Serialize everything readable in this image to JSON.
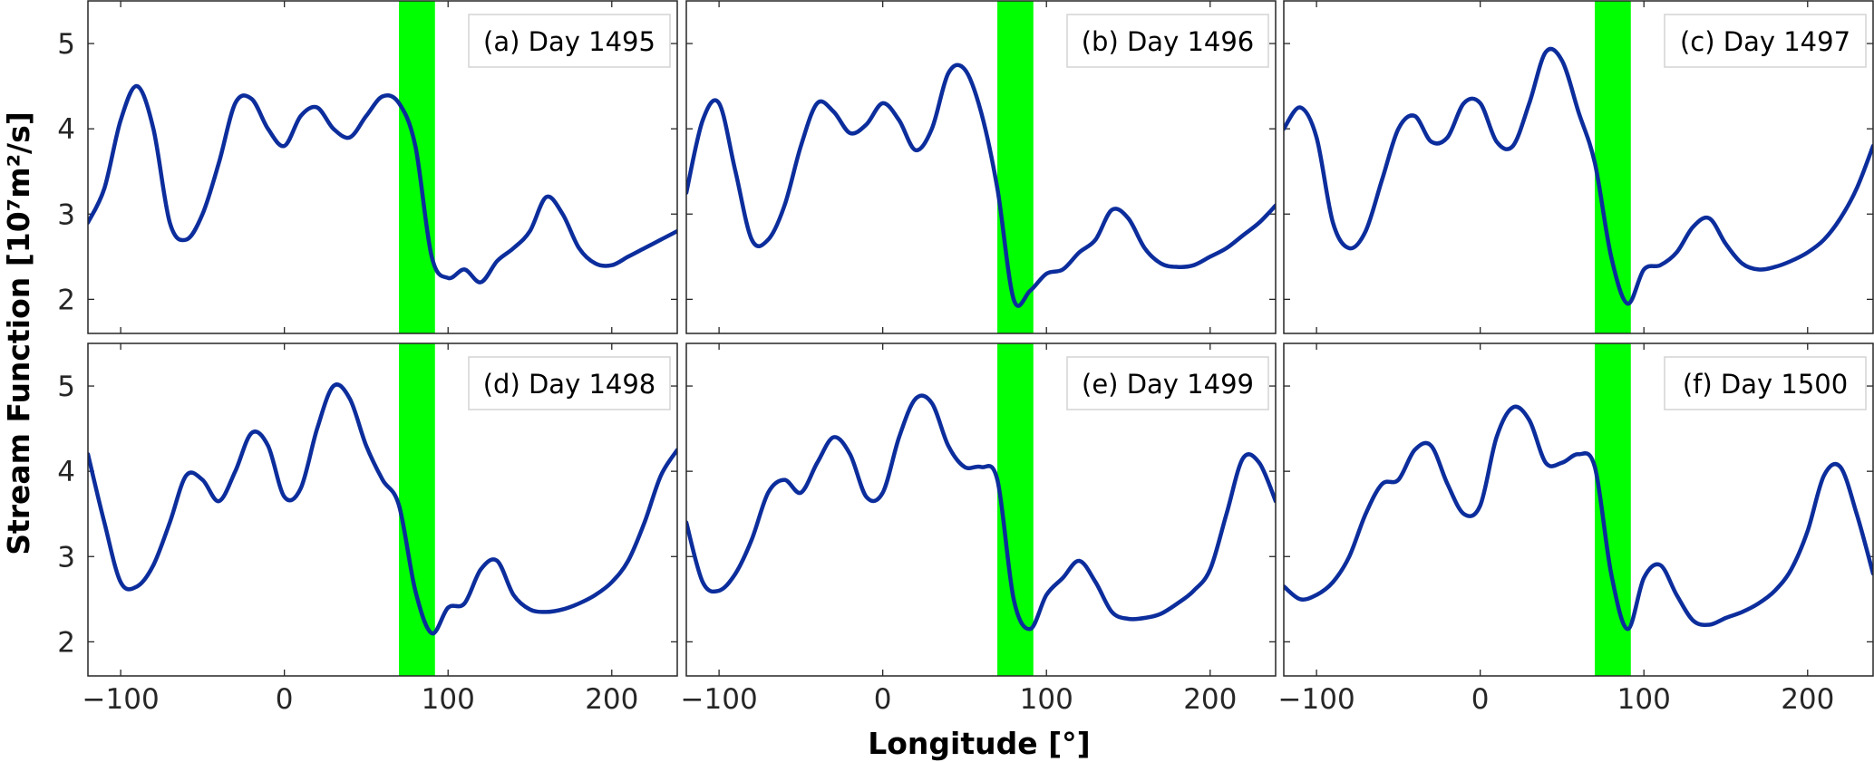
{
  "figure": {
    "ylabel": "Stream Function [10⁷m²/s]",
    "xlabel": "Longitude [°]"
  },
  "chart_data": [
    {
      "type": "line",
      "title": "(a) Day 1495",
      "xlim": [
        -120,
        240
      ],
      "ylim": [
        1.6,
        5.5
      ],
      "xticks": [
        -100,
        0,
        100,
        200
      ],
      "yticks": [
        2,
        3,
        4,
        5
      ],
      "highlight_band": [
        70,
        92
      ],
      "highlight_color": "#00ff00",
      "line_color": "#0c2d9c",
      "x": [
        -120,
        -110,
        -100,
        -90,
        -80,
        -70,
        -60,
        -50,
        -40,
        -30,
        -20,
        -10,
        0,
        10,
        20,
        30,
        40,
        50,
        60,
        70,
        80,
        90,
        100,
        110,
        120,
        130,
        140,
        150,
        160,
        170,
        180,
        190,
        200,
        210,
        220,
        230,
        240
      ],
      "y": [
        2.9,
        3.3,
        4.1,
        4.5,
        4.0,
        2.9,
        2.7,
        3.0,
        3.6,
        4.3,
        4.35,
        4.0,
        3.8,
        4.15,
        4.25,
        4.0,
        3.9,
        4.15,
        4.38,
        4.3,
        3.8,
        2.5,
        2.25,
        2.35,
        2.2,
        2.45,
        2.6,
        2.8,
        3.2,
        3.0,
        2.6,
        2.42,
        2.4,
        2.5,
        2.6,
        2.7,
        2.8
      ]
    },
    {
      "type": "line",
      "title": "(b) Day 1496",
      "xlim": [
        -120,
        240
      ],
      "ylim": [
        1.6,
        5.5
      ],
      "xticks": [
        -100,
        0,
        100,
        200
      ],
      "yticks": [
        2,
        3,
        4,
        5
      ],
      "highlight_band": [
        70,
        92
      ],
      "highlight_color": "#00ff00",
      "line_color": "#0c2d9c",
      "x": [
        -120,
        -110,
        -100,
        -90,
        -80,
        -70,
        -60,
        -50,
        -40,
        -30,
        -20,
        -10,
        0,
        10,
        20,
        30,
        40,
        50,
        60,
        70,
        80,
        90,
        100,
        110,
        120,
        130,
        140,
        150,
        160,
        170,
        180,
        190,
        200,
        210,
        220,
        230,
        240
      ],
      "y": [
        3.25,
        4.1,
        4.3,
        3.5,
        2.7,
        2.7,
        3.1,
        3.8,
        4.3,
        4.2,
        3.95,
        4.05,
        4.3,
        4.1,
        3.75,
        4.0,
        4.65,
        4.7,
        4.2,
        3.3,
        2.0,
        2.1,
        2.3,
        2.35,
        2.55,
        2.7,
        3.05,
        2.95,
        2.6,
        2.42,
        2.38,
        2.4,
        2.5,
        2.6,
        2.75,
        2.9,
        3.1
      ]
    },
    {
      "type": "line",
      "title": "(c) Day 1497",
      "xlim": [
        -120,
        240
      ],
      "ylim": [
        1.6,
        5.5
      ],
      "xticks": [
        -100,
        0,
        100,
        200
      ],
      "yticks": [
        2,
        3,
        4,
        5
      ],
      "highlight_band": [
        70,
        92
      ],
      "highlight_color": "#00ff00",
      "line_color": "#0c2d9c",
      "x": [
        -120,
        -110,
        -100,
        -90,
        -80,
        -70,
        -60,
        -50,
        -40,
        -30,
        -20,
        -10,
        0,
        10,
        20,
        30,
        40,
        50,
        60,
        70,
        80,
        90,
        100,
        110,
        120,
        130,
        140,
        150,
        160,
        170,
        180,
        190,
        200,
        210,
        220,
        230,
        240
      ],
      "y": [
        4.0,
        4.25,
        3.9,
        2.9,
        2.6,
        2.8,
        3.4,
        4.0,
        4.15,
        3.85,
        3.9,
        4.3,
        4.3,
        3.85,
        3.8,
        4.3,
        4.9,
        4.8,
        4.2,
        3.6,
        2.5,
        1.95,
        2.35,
        2.4,
        2.55,
        2.85,
        2.95,
        2.65,
        2.42,
        2.35,
        2.38,
        2.45,
        2.55,
        2.7,
        2.95,
        3.3,
        3.8
      ]
    },
    {
      "type": "line",
      "title": "(d) Day 1498",
      "xlim": [
        -120,
        240
      ],
      "ylim": [
        1.6,
        5.5
      ],
      "xticks": [
        -100,
        0,
        100,
        200
      ],
      "yticks": [
        2,
        3,
        4,
        5
      ],
      "highlight_band": [
        70,
        92
      ],
      "highlight_color": "#00ff00",
      "line_color": "#0c2d9c",
      "x": [
        -120,
        -110,
        -100,
        -90,
        -80,
        -70,
        -60,
        -50,
        -40,
        -30,
        -20,
        -10,
        0,
        10,
        20,
        30,
        40,
        50,
        60,
        70,
        80,
        90,
        100,
        110,
        120,
        130,
        140,
        150,
        160,
        170,
        180,
        190,
        200,
        210,
        220,
        230,
        240
      ],
      "y": [
        4.2,
        3.4,
        2.7,
        2.65,
        2.9,
        3.4,
        3.95,
        3.9,
        3.65,
        4.0,
        4.45,
        4.3,
        3.7,
        3.8,
        4.5,
        5.0,
        4.85,
        4.3,
        3.9,
        3.6,
        2.6,
        2.1,
        2.4,
        2.45,
        2.85,
        2.95,
        2.55,
        2.38,
        2.35,
        2.38,
        2.45,
        2.55,
        2.7,
        2.95,
        3.4,
        3.95,
        4.25
      ]
    },
    {
      "type": "line",
      "title": "(e) Day 1499",
      "xlim": [
        -120,
        240
      ],
      "ylim": [
        1.6,
        5.5
      ],
      "xticks": [
        -100,
        0,
        100,
        200
      ],
      "yticks": [
        2,
        3,
        4,
        5
      ],
      "highlight_band": [
        70,
        92
      ],
      "highlight_color": "#00ff00",
      "line_color": "#0c2d9c",
      "x": [
        -120,
        -110,
        -100,
        -90,
        -80,
        -70,
        -60,
        -50,
        -40,
        -30,
        -20,
        -10,
        0,
        10,
        20,
        30,
        40,
        50,
        60,
        70,
        80,
        90,
        100,
        110,
        120,
        130,
        140,
        150,
        160,
        170,
        180,
        190,
        200,
        210,
        220,
        230,
        240
      ],
      "y": [
        3.4,
        2.7,
        2.6,
        2.8,
        3.2,
        3.75,
        3.9,
        3.75,
        4.1,
        4.4,
        4.2,
        3.7,
        3.75,
        4.4,
        4.85,
        4.8,
        4.3,
        4.05,
        4.05,
        3.9,
        2.5,
        2.15,
        2.55,
        2.75,
        2.95,
        2.7,
        2.35,
        2.27,
        2.28,
        2.33,
        2.45,
        2.6,
        2.85,
        3.5,
        4.15,
        4.1,
        3.65
      ]
    },
    {
      "type": "line",
      "title": "(f) Day 1500",
      "xlim": [
        -120,
        240
      ],
      "ylim": [
        1.6,
        5.5
      ],
      "xticks": [
        -100,
        0,
        100,
        200
      ],
      "yticks": [
        2,
        3,
        4,
        5
      ],
      "highlight_band": [
        70,
        92
      ],
      "highlight_color": "#00ff00",
      "line_color": "#0c2d9c",
      "x": [
        -120,
        -110,
        -100,
        -90,
        -80,
        -70,
        -60,
        -50,
        -40,
        -30,
        -20,
        -10,
        0,
        10,
        20,
        30,
        40,
        50,
        60,
        70,
        80,
        90,
        100,
        110,
        120,
        130,
        140,
        150,
        160,
        170,
        180,
        190,
        200,
        210,
        220,
        230,
        240
      ],
      "y": [
        2.65,
        2.5,
        2.55,
        2.7,
        3.0,
        3.5,
        3.85,
        3.9,
        4.25,
        4.3,
        3.85,
        3.5,
        3.6,
        4.4,
        4.75,
        4.6,
        4.1,
        4.1,
        4.2,
        4.05,
        2.8,
        2.15,
        2.75,
        2.9,
        2.55,
        2.25,
        2.2,
        2.28,
        2.35,
        2.45,
        2.6,
        2.85,
        3.3,
        3.95,
        4.05,
        3.5,
        2.8
      ]
    }
  ]
}
